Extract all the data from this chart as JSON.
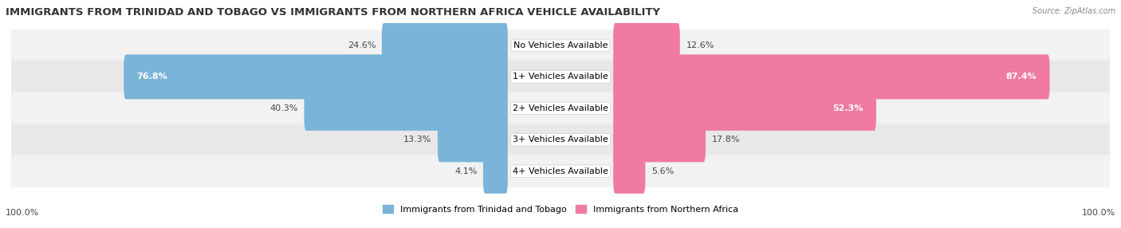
{
  "title": "IMMIGRANTS FROM TRINIDAD AND TOBAGO VS IMMIGRANTS FROM NORTHERN AFRICA VEHICLE AVAILABILITY",
  "source": "Source: ZipAtlas.com",
  "categories": [
    "No Vehicles Available",
    "1+ Vehicles Available",
    "2+ Vehicles Available",
    "3+ Vehicles Available",
    "4+ Vehicles Available"
  ],
  "trinidad_values": [
    24.6,
    76.8,
    40.3,
    13.3,
    4.1
  ],
  "northern_africa_values": [
    12.6,
    87.4,
    52.3,
    17.8,
    5.6
  ],
  "trinidad_color": "#7ab4d8",
  "northern_africa_color": "#f07aa0",
  "row_bg_even": "#f2f2f2",
  "row_bg_odd": "#e8e8e8",
  "legend_trinidad": "Immigrants from Trinidad and Tobago",
  "legend_northern_africa": "Immigrants from Northern Africa",
  "bar_height": 0.62,
  "title_fontsize": 9.5,
  "label_fontsize": 8.0,
  "value_fontsize": 8.0
}
